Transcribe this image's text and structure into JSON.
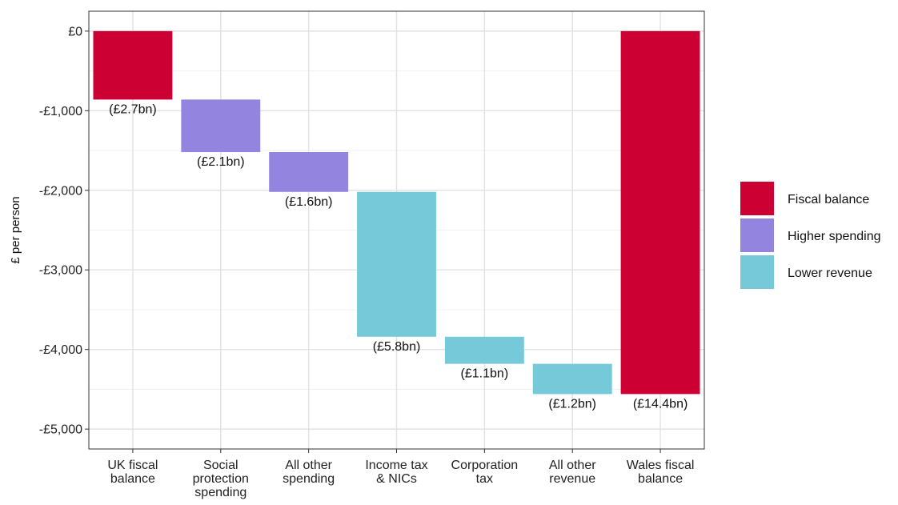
{
  "chart_data": {
    "type": "bar",
    "subtype": "waterfall",
    "title": "",
    "xlabel": "",
    "ylabel": "£ per person",
    "ylim": [
      -5250,
      250
    ],
    "yticks": [
      {
        "value": 0,
        "label": "£0"
      },
      {
        "value": -1000,
        "label": "-£1,000"
      },
      {
        "value": -2000,
        "label": "-£2,000"
      },
      {
        "value": -3000,
        "label": "-£3,000"
      },
      {
        "value": -4000,
        "label": "-£4,000"
      },
      {
        "value": -5000,
        "label": "-£5,000"
      }
    ],
    "grid": true,
    "legend_position": "right",
    "categories": [
      [
        "UK fiscal",
        "balance"
      ],
      [
        "Social",
        "protection",
        "spending"
      ],
      [
        "All other",
        "spending"
      ],
      [
        "Income tax",
        "& NICs"
      ],
      [
        "Corporation",
        "tax"
      ],
      [
        "All other",
        "revenue"
      ],
      [
        "Wales fiscal",
        "balance"
      ]
    ],
    "bars": [
      {
        "start": 0,
        "end": -860,
        "group": "fiscal",
        "label": "(£2.7bn)"
      },
      {
        "start": -860,
        "end": -1520,
        "group": "spending",
        "label": "(£2.1bn)"
      },
      {
        "start": -1520,
        "end": -2020,
        "group": "spending",
        "label": "(£1.6bn)"
      },
      {
        "start": -2020,
        "end": -3840,
        "group": "revenue",
        "label": "(£5.8bn)"
      },
      {
        "start": -3840,
        "end": -4180,
        "group": "revenue",
        "label": "(£1.1bn)"
      },
      {
        "start": -4180,
        "end": -4560,
        "group": "revenue",
        "label": "(£1.2bn)"
      },
      {
        "start": 0,
        "end": -4560,
        "group": "fiscal",
        "label": "(£14.4bn)"
      }
    ],
    "legend": [
      {
        "group": "fiscal",
        "name": "Fiscal balance",
        "color": "#cc0033"
      },
      {
        "group": "spending",
        "name": "Higher spending",
        "color": "#9384e0"
      },
      {
        "group": "revenue",
        "name": "Lower revenue",
        "color": "#76c9d8"
      }
    ]
  }
}
